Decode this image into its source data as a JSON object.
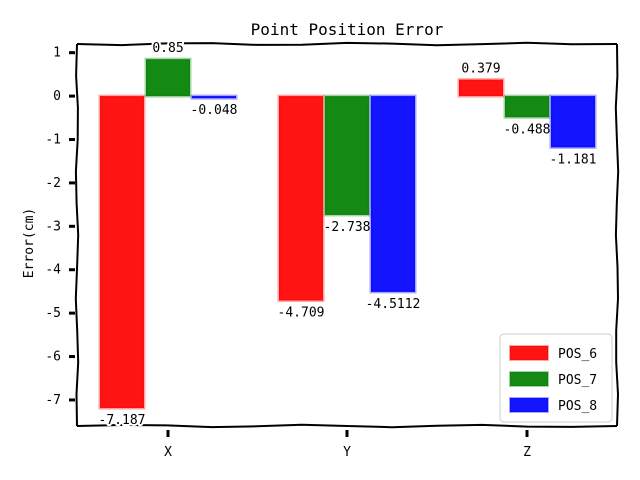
{
  "chart_data": {
    "type": "bar",
    "title": "Point Position Error",
    "xlabel": "",
    "ylabel": "Error(cm)",
    "categories": [
      "X",
      "Y",
      "Z"
    ],
    "ylim": [
      -7.6,
      1.2
    ],
    "yticks": [
      1,
      0,
      -1,
      -2,
      -3,
      -4,
      -5,
      -6,
      -7
    ],
    "series": [
      {
        "name": "POS_6",
        "color": "#ff0000",
        "values": [
          -7.187,
          -4.709,
          0.379
        ],
        "labels": [
          "-7.187",
          "-4.709",
          "0.379"
        ]
      },
      {
        "name": "POS_7",
        "color": "#008000",
        "values": [
          0.85,
          -2.738,
          -0.488
        ],
        "labels": [
          "0.85",
          "-2.738",
          "-0.488"
        ]
      },
      {
        "name": "POS_8",
        "color": "#0000ff",
        "values": [
          -0.048,
          -4.5112,
          -1.181
        ],
        "labels": [
          "-0.048",
          "-4.5112",
          "-1.181"
        ]
      }
    ],
    "legend": "bottom-right",
    "grid": false
  }
}
